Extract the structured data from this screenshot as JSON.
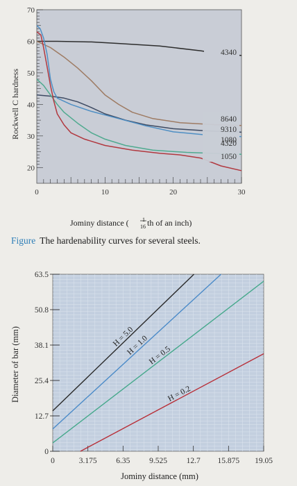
{
  "figure": {
    "caption_label": "Figure",
    "caption_text": "The hardenability curves for several steels."
  },
  "chart_data": [
    {
      "type": "line",
      "title": "",
      "xlabel": "Jominy distance (1/16 th of an inch)",
      "xlabel_parts": {
        "before": "Jominy distance (",
        "num": "1",
        "den": "16",
        "after": "th of an inch)"
      },
      "ylabel": "Rockwell C hardness",
      "xlim": [
        0,
        30
      ],
      "ylim": [
        15,
        70
      ],
      "x_ticks": [
        0,
        10,
        20,
        30
      ],
      "y_ticks": [
        20,
        30,
        40,
        50,
        60,
        70
      ],
      "grid": false,
      "series": [
        {
          "name": "4340",
          "color": "#2d2d2d",
          "points": [
            [
              0,
              60
            ],
            [
              3,
              60
            ],
            [
              8,
              59.8
            ],
            [
              12,
              59.3
            ],
            [
              18,
              58.5
            ],
            [
              24,
              57
            ],
            [
              27,
              56
            ],
            [
              30,
              55.5
            ]
          ]
        },
        {
          "name": "8640",
          "color": "#9e7b63",
          "points": [
            [
              0,
              60
            ],
            [
              2,
              58
            ],
            [
              4,
              55
            ],
            [
              6,
              51.5
            ],
            [
              8,
              47.5
            ],
            [
              10,
              43
            ],
            [
              12,
              40
            ],
            [
              14,
              37.5
            ],
            [
              17,
              35.5
            ],
            [
              21,
              34.2
            ],
            [
              26,
              33.6
            ],
            [
              30,
              33.3
            ]
          ]
        },
        {
          "name": "9310",
          "color": "#3d4a62",
          "points": [
            [
              0,
              43
            ],
            [
              2,
              42.6
            ],
            [
              4,
              42
            ],
            [
              6,
              40.8
            ],
            [
              8,
              39
            ],
            [
              10,
              37
            ],
            [
              13,
              35
            ],
            [
              16,
              33.5
            ],
            [
              20,
              32.3
            ],
            [
              25,
              31.6
            ],
            [
              30,
              31.2
            ]
          ]
        },
        {
          "name": "1080",
          "color": "#4f8fc4",
          "points": [
            [
              0,
              65
            ],
            [
              0.5,
              64
            ],
            [
              1,
              61
            ],
            [
              1.5,
              56
            ],
            [
              2,
              48
            ],
            [
              2.5,
              44
            ],
            [
              3,
              42
            ],
            [
              5,
              40
            ],
            [
              8,
              37.8
            ],
            [
              12,
              35.5
            ],
            [
              16,
              33.2
            ],
            [
              20,
              31.3
            ],
            [
              25,
              30.3
            ],
            [
              30,
              29.8
            ]
          ]
        },
        {
          "name": "4320",
          "color": "#4faa8f",
          "points": [
            [
              0,
              48
            ],
            [
              1,
              46
            ],
            [
              2,
              43
            ],
            [
              3,
              40
            ],
            [
              4,
              37.5
            ],
            [
              6,
              34
            ],
            [
              8,
              31
            ],
            [
              10,
              29
            ],
            [
              13,
              27
            ],
            [
              17,
              25.5
            ],
            [
              22,
              24.8
            ],
            [
              30,
              24.2
            ]
          ]
        },
        {
          "name": "1050",
          "color": "#b1383f",
          "points": [
            [
              0,
              63
            ],
            [
              0.6,
              62
            ],
            [
              1,
              58
            ],
            [
              1.5,
              52
            ],
            [
              2,
              46
            ],
            [
              2.5,
              41
            ],
            [
              3,
              37
            ],
            [
              4,
              33.5
            ],
            [
              5,
              31
            ],
            [
              7,
              29
            ],
            [
              10,
              27
            ],
            [
              14,
              25.5
            ],
            [
              18,
              24.5
            ],
            [
              21,
              24
            ],
            [
              24,
              23
            ],
            [
              27,
              20.5
            ],
            [
              30,
              19
            ]
          ]
        }
      ],
      "legend": {
        "placement": "right, at curve ends",
        "entries": [
          "4340",
          "8640",
          "9310",
          "1080",
          "4320",
          "1050"
        ]
      }
    },
    {
      "type": "line",
      "title": "",
      "xlabel": "Jominy distance (mm)",
      "ylabel": "Diameter of bar (mm)",
      "xlim": [
        0,
        19.05
      ],
      "ylim": [
        0,
        63.5
      ],
      "x_ticks": [
        "0",
        "3.175",
        "6.35",
        "9.525",
        "12.7",
        "15.875",
        "19.05"
      ],
      "y_ticks": [
        "0",
        "12.7",
        "25.4",
        "38.1",
        "50.8",
        "63.5"
      ],
      "grid": true,
      "series": [
        {
          "name": "H = 5.0",
          "color": "#2a2a2a",
          "points": [
            [
              0,
              14.5
            ],
            [
              12.75,
              63.5
            ]
          ]
        },
        {
          "name": "H = 1.0",
          "color": "#4a8ac8",
          "points": [
            [
              0,
              8
            ],
            [
              15.2,
              63.5
            ]
          ]
        },
        {
          "name": "H = 0.5",
          "color": "#45a88b",
          "points": [
            [
              0,
              3
            ],
            [
              19.05,
              61
            ]
          ]
        },
        {
          "name": "H = 0.2",
          "color": "#b82f38",
          "points": [
            [
              2.5,
              0
            ],
            [
              19.05,
              35
            ]
          ]
        }
      ]
    }
  ]
}
